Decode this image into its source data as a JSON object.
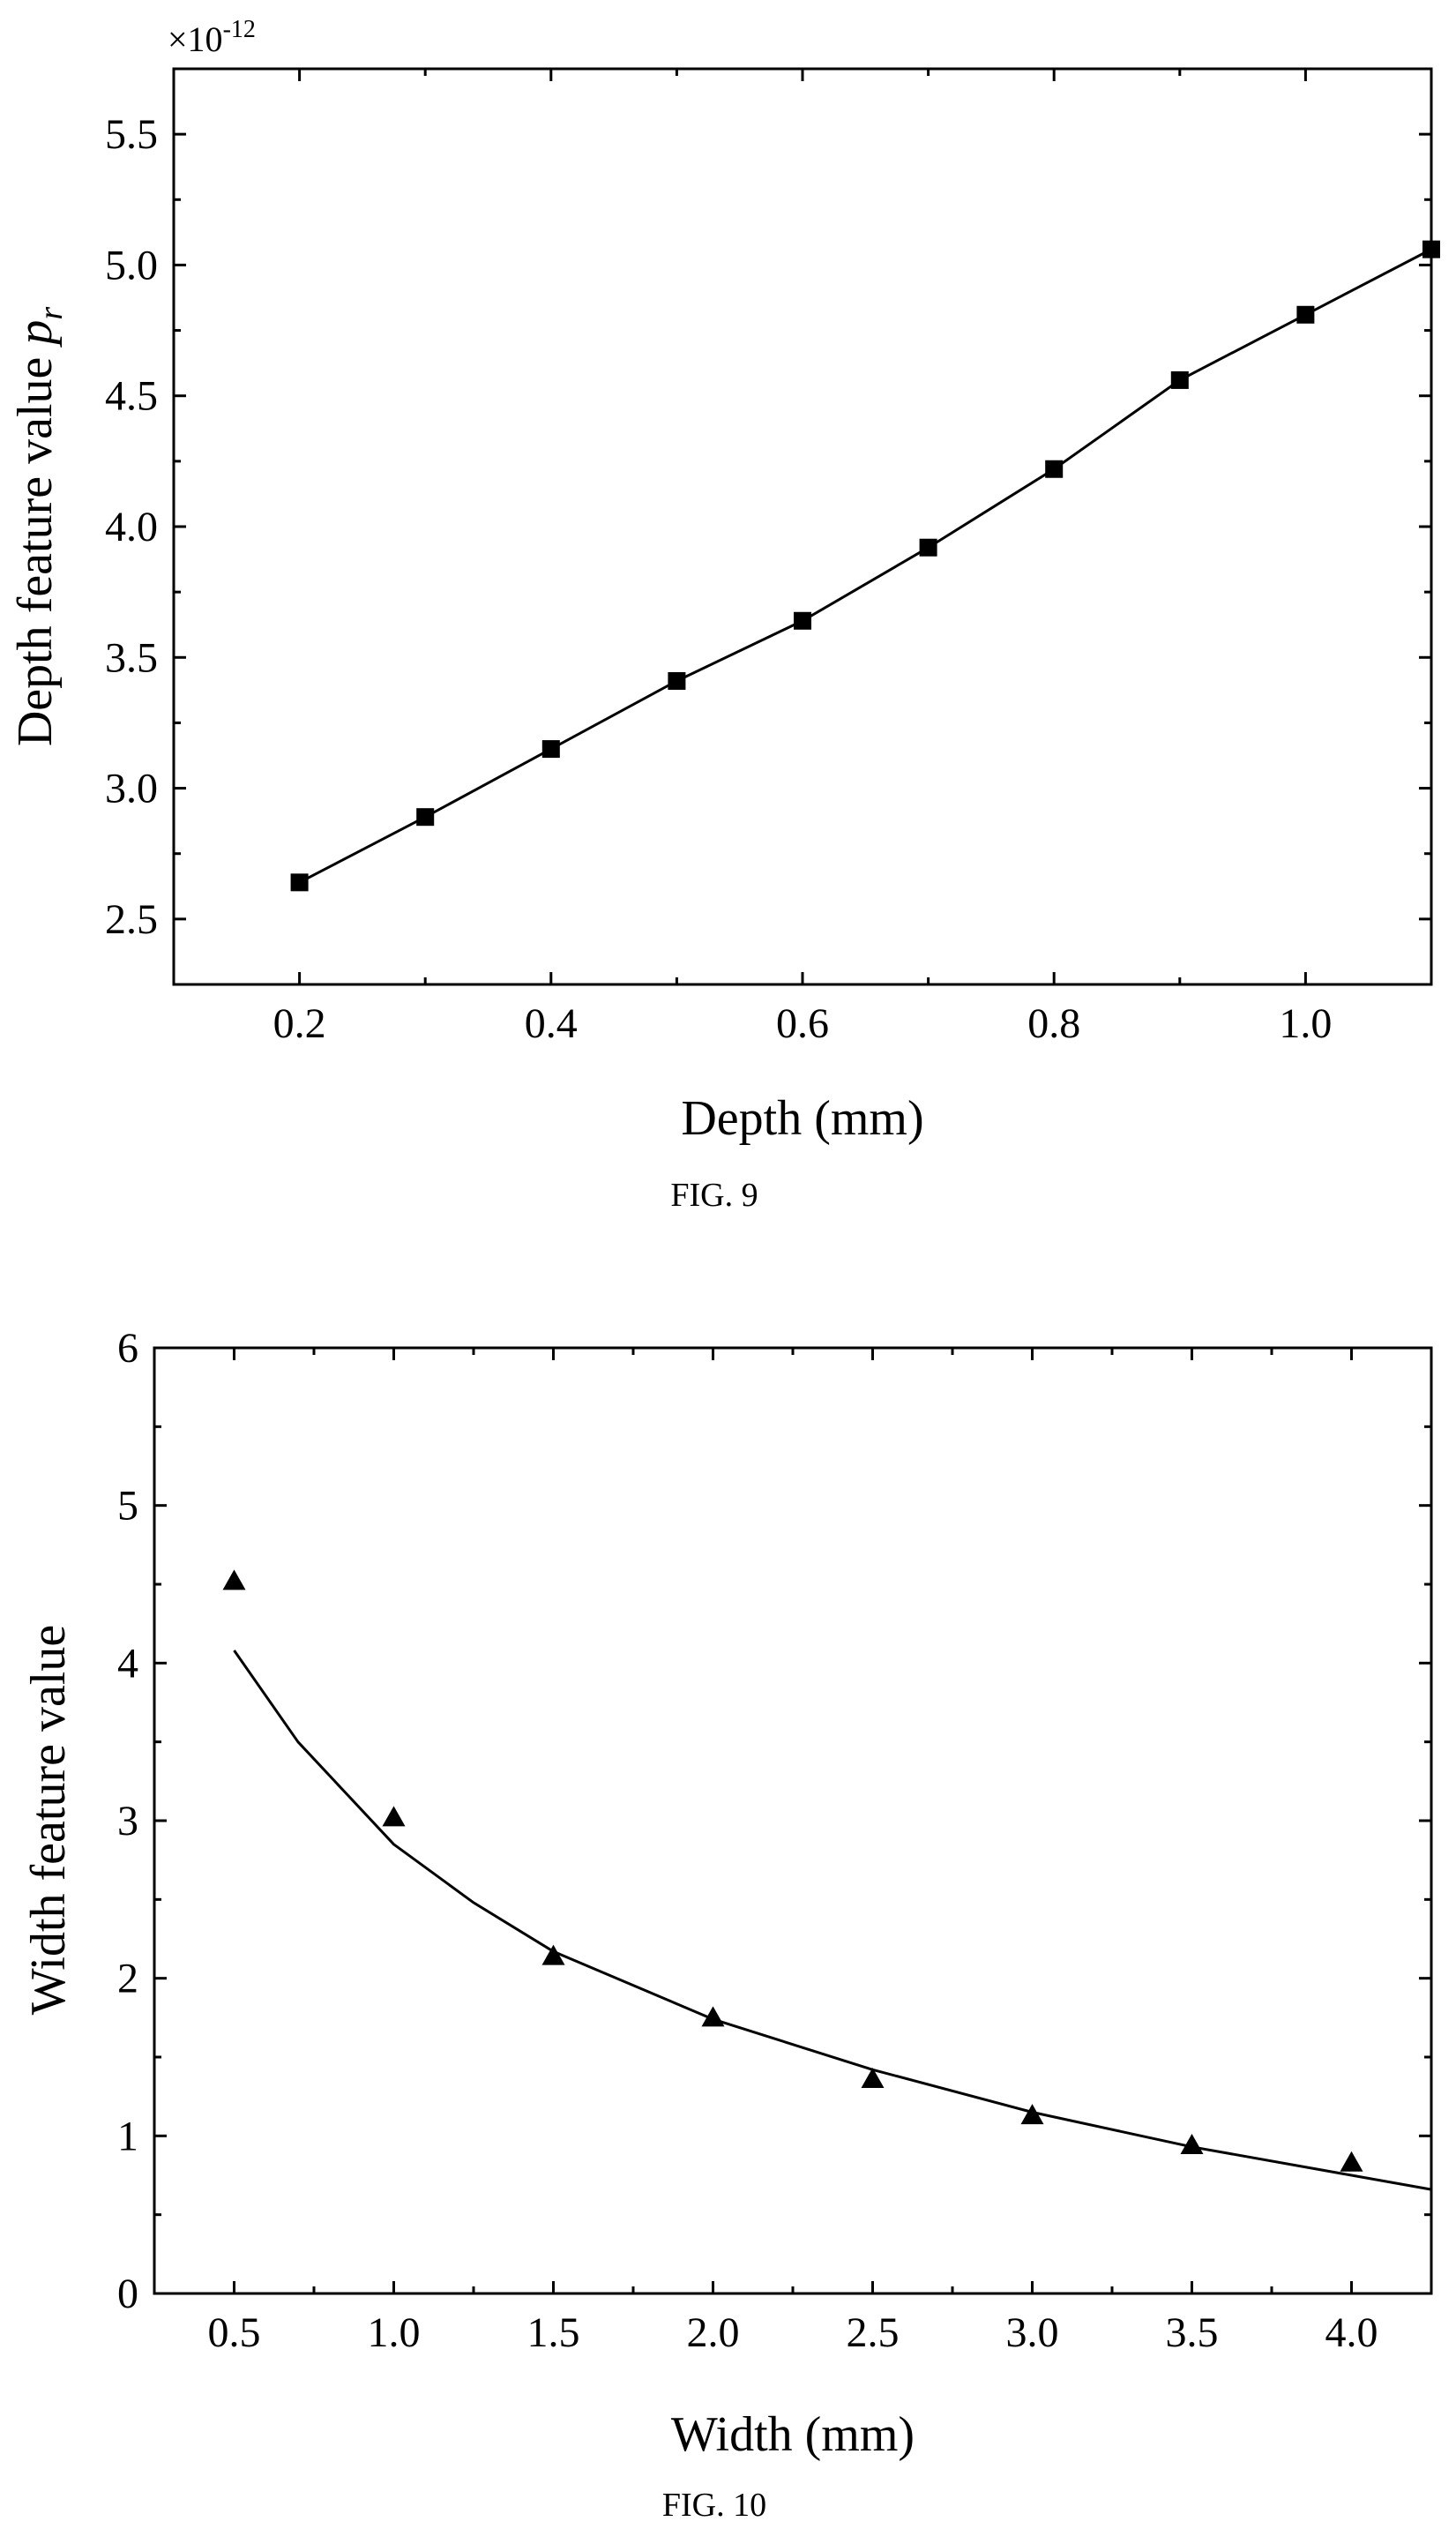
{
  "chart_data": [
    {
      "type": "line",
      "caption": "FIG. 9",
      "xlabel": "Depth (mm)",
      "ylabel": "Depth feature value ",
      "ylabel_symbol": "p",
      "ylabel_subscript": "r",
      "y_multiplier_base": "×10",
      "y_multiplier_exponent": "-12",
      "xlim": [
        0.1,
        1.1
      ],
      "ylim": [
        2.25,
        5.75
      ],
      "xticks": [
        0.2,
        0.4,
        0.6,
        0.8,
        1.0
      ],
      "xtick_labels": [
        "0.2",
        "0.4",
        "0.6",
        "0.8",
        "1.0"
      ],
      "yticks": [
        2.5,
        3.0,
        3.5,
        4.0,
        4.5,
        5.0,
        5.5
      ],
      "ytick_labels": [
        "2.5",
        "3.0",
        "3.5",
        "4.0",
        "4.5",
        "5.0",
        "5.5"
      ],
      "marker": "square",
      "series": [
        {
          "x": [
            0.2,
            0.3,
            0.4,
            0.5,
            0.6,
            0.7,
            0.8,
            0.9,
            1.0,
            1.1
          ],
          "y": [
            2.64,
            2.89,
            3.15,
            3.41,
            3.64,
            3.92,
            4.22,
            4.56,
            4.81,
            5.06
          ]
        }
      ],
      "grid": false
    },
    {
      "type": "scatter",
      "caption": "FIG. 10",
      "xlabel": "Width (mm)",
      "ylabel": "Width feature value",
      "xlim": [
        0.25,
        4.25
      ],
      "ylim": [
        0,
        6
      ],
      "xticks": [
        0.5,
        1.0,
        1.5,
        2.0,
        2.5,
        3.0,
        3.5,
        4.0
      ],
      "xtick_labels": [
        "0.5",
        "1.0",
        "1.5",
        "2.0",
        "2.5",
        "3.0",
        "3.5",
        "4.0"
      ],
      "yticks": [
        0,
        1,
        2,
        3,
        4,
        5,
        6
      ],
      "ytick_labels": [
        "0",
        "1",
        "2",
        "3",
        "4",
        "5",
        "6"
      ],
      "marker": "triangle",
      "points": {
        "x": [
          0.5,
          1.0,
          1.5,
          2.0,
          2.5,
          3.0,
          3.5,
          4.0
        ],
        "y": [
          4.52,
          3.02,
          2.14,
          1.75,
          1.36,
          1.13,
          0.94,
          0.83
        ]
      },
      "fit_curve": {
        "x": [
          0.5,
          0.7,
          1.0,
          1.25,
          1.5,
          2.0,
          2.5,
          3.0,
          3.5,
          4.0,
          4.25
        ],
        "y": [
          4.08,
          3.5,
          2.85,
          2.48,
          2.17,
          1.74,
          1.42,
          1.15,
          0.93,
          0.75,
          0.66
        ]
      },
      "grid": false
    }
  ]
}
